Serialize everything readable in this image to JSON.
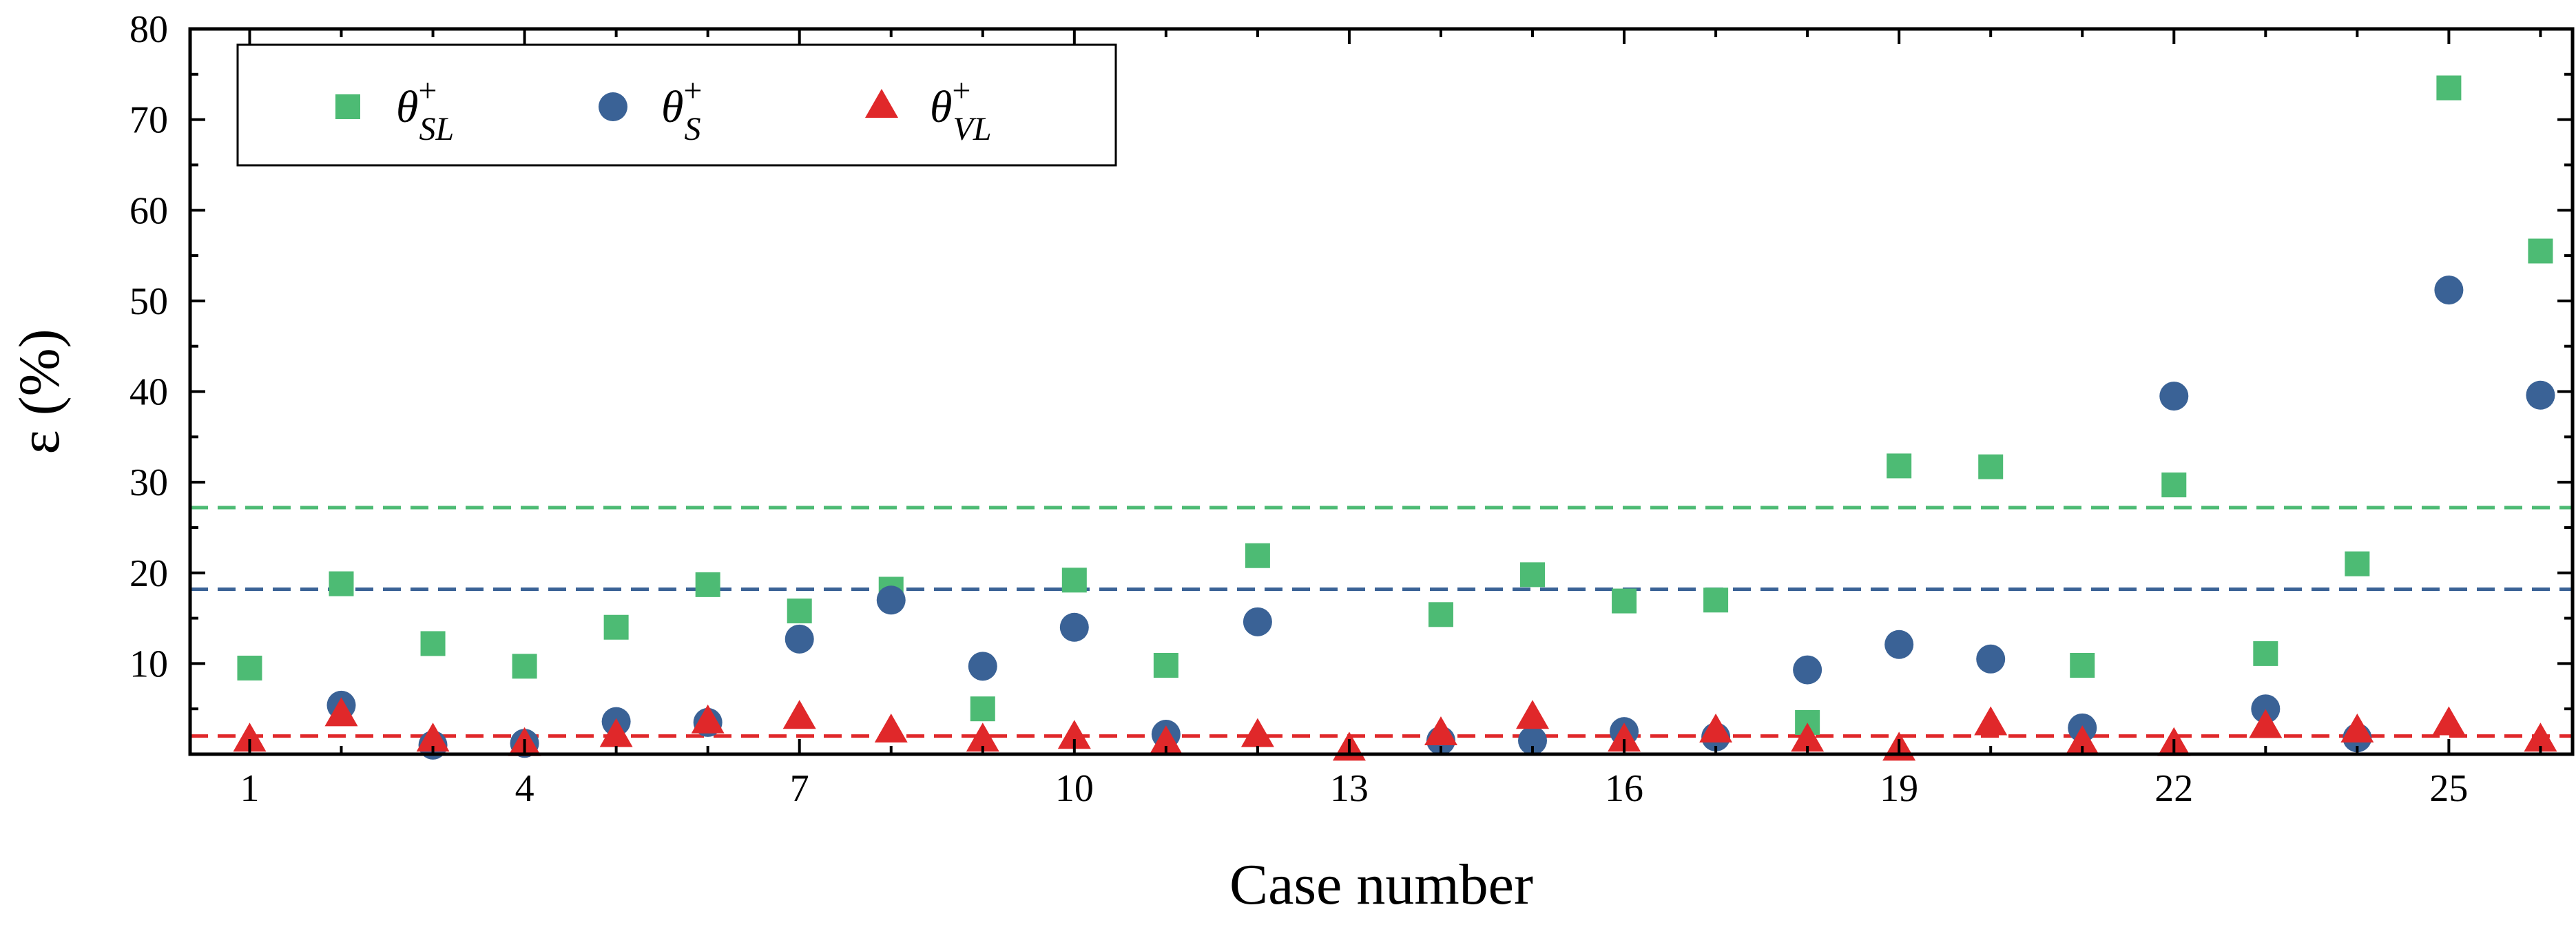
{
  "chart_data": {
    "type": "scatter",
    "xlabel": "Case number",
    "ylabel": "ε (%)",
    "xlim": [
      0.35,
      26.35
    ],
    "ylim": [
      0,
      80
    ],
    "xticks": [
      1,
      4,
      7,
      10,
      13,
      16,
      19,
      22,
      25
    ],
    "yticks": [
      10,
      20,
      30,
      40,
      50,
      60,
      70,
      80
    ],
    "grid": false,
    "legend_position": "top-left",
    "series": [
      {
        "name": "θ+SL",
        "legend_symbol": "θ",
        "legend_sup": "+",
        "legend_sub": "SL",
        "marker": "square",
        "color": "#4dbb74",
        "x": [
          1,
          2,
          3,
          4,
          5,
          6,
          7,
          8,
          9,
          10,
          11,
          12,
          14,
          15,
          16,
          17,
          18,
          19,
          20,
          21,
          22,
          23,
          24,
          25,
          26
        ],
        "y": [
          9.5,
          18.8,
          12.2,
          9.7,
          14.0,
          18.7,
          15.8,
          18.2,
          5.0,
          19.2,
          9.8,
          21.9,
          15.4,
          19.8,
          16.9,
          17.0,
          3.5,
          31.8,
          31.7,
          9.8,
          29.7,
          11.1,
          21.0,
          73.5,
          55.5
        ]
      },
      {
        "name": "θ+S",
        "legend_symbol": "θ",
        "legend_sup": "+",
        "legend_sub": "S",
        "marker": "circle",
        "color": "#3a6296",
        "x": [
          2,
          3,
          4,
          5,
          6,
          7,
          8,
          9,
          10,
          11,
          12,
          14,
          15,
          16,
          17,
          18,
          19,
          20,
          21,
          22,
          23,
          24,
          25,
          26
        ],
        "y": [
          5.4,
          1.0,
          1.2,
          3.6,
          3.5,
          12.7,
          17.0,
          9.7,
          14.0,
          2.2,
          14.6,
          1.5,
          1.5,
          2.5,
          1.9,
          9.3,
          12.1,
          10.5,
          2.9,
          39.5,
          5.0,
          1.8,
          51.2,
          39.6
        ]
      },
      {
        "name": "θ+VL",
        "legend_symbol": "θ",
        "legend_sup": "+",
        "legend_sub": "VL",
        "marker": "triangle",
        "color": "#e0282a",
        "x": [
          1,
          2,
          3,
          4,
          5,
          6,
          7,
          8,
          9,
          10,
          11,
          12,
          13,
          14,
          15,
          16,
          17,
          18,
          19,
          20,
          21,
          22,
          23,
          24,
          25,
          26
        ],
        "y": [
          1.5,
          4.3,
          1.5,
          1.0,
          2.0,
          3.5,
          4.0,
          2.5,
          1.5,
          1.8,
          1.2,
          2.0,
          0.5,
          2.2,
          4.0,
          1.5,
          2.5,
          1.5,
          0.5,
          3.3,
          1.2,
          1.0,
          3.0,
          2.5,
          3.3,
          1.5
        ]
      }
    ],
    "reference_lines": [
      {
        "value": 27.2,
        "color": "#4dbb74",
        "style": "dashed"
      },
      {
        "value": 18.2,
        "color": "#3a6296",
        "style": "dashed"
      },
      {
        "value": 2.0,
        "color": "#e0282a",
        "style": "dashed"
      }
    ]
  }
}
